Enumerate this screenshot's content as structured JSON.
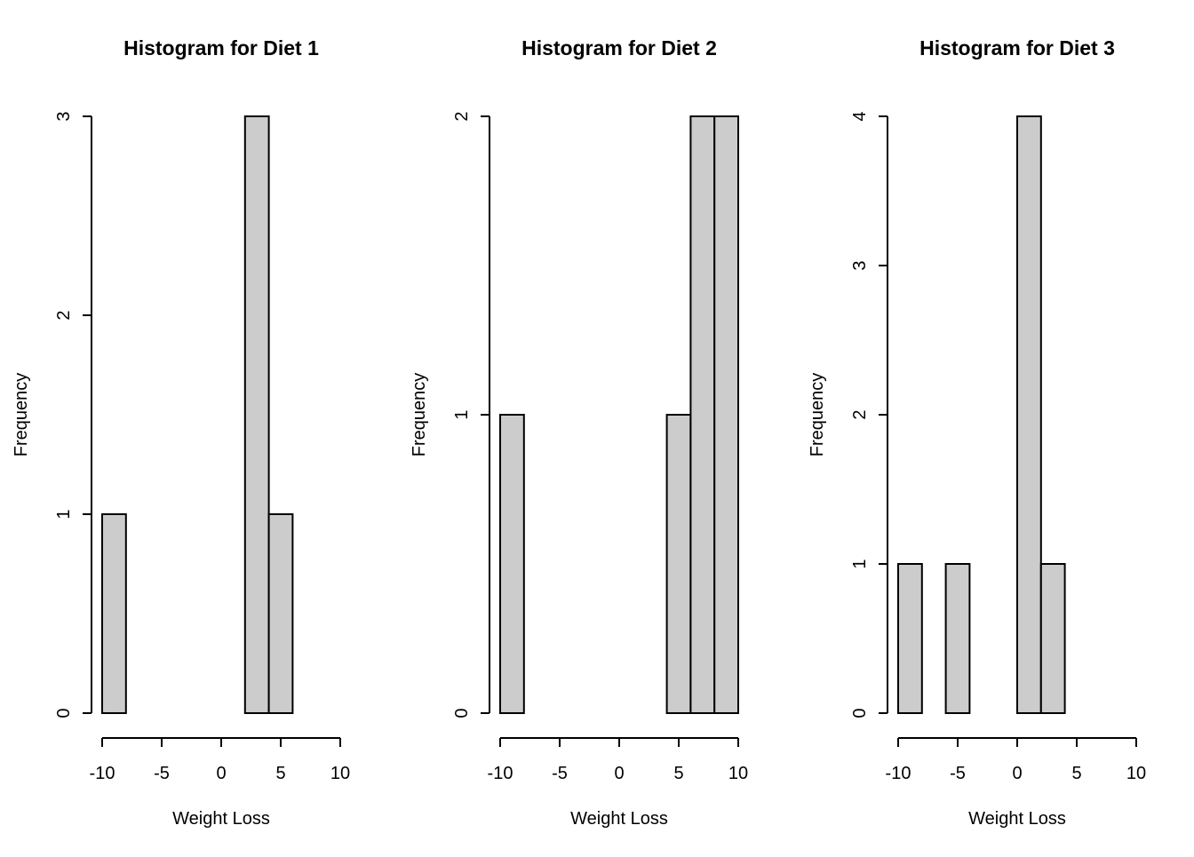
{
  "chart_data": [
    {
      "type": "bar",
      "title": "Histogram for Diet 1",
      "xlabel": "Weight Loss",
      "ylabel": "Frequency",
      "bin_width": 2,
      "bins": [
        {
          "start": -10,
          "end": -8,
          "count": 1
        },
        {
          "start": -8,
          "end": -6,
          "count": 0
        },
        {
          "start": -6,
          "end": -4,
          "count": 0
        },
        {
          "start": -4,
          "end": -2,
          "count": 0
        },
        {
          "start": -2,
          "end": 0,
          "count": 0
        },
        {
          "start": 0,
          "end": 2,
          "count": 0
        },
        {
          "start": 2,
          "end": 4,
          "count": 3
        },
        {
          "start": 4,
          "end": 6,
          "count": 1
        },
        {
          "start": 6,
          "end": 8,
          "count": 0
        },
        {
          "start": 8,
          "end": 10,
          "count": 0
        }
      ],
      "xlim": [
        -10,
        10
      ],
      "ylim": [
        0,
        3
      ],
      "xticks": [
        "-10",
        "-5",
        "0",
        "5",
        "10"
      ],
      "yticks": [
        "0",
        "1",
        "2",
        "3"
      ],
      "bar_color": "#cccccc",
      "grid": false
    },
    {
      "type": "bar",
      "title": "Histogram for Diet 2",
      "xlabel": "Weight Loss",
      "ylabel": "Frequency",
      "bin_width": 2,
      "bins": [
        {
          "start": -10,
          "end": -8,
          "count": 1
        },
        {
          "start": -8,
          "end": -6,
          "count": 0
        },
        {
          "start": -6,
          "end": -4,
          "count": 0
        },
        {
          "start": -4,
          "end": -2,
          "count": 0
        },
        {
          "start": -2,
          "end": 0,
          "count": 0
        },
        {
          "start": 0,
          "end": 2,
          "count": 0
        },
        {
          "start": 2,
          "end": 4,
          "count": 0
        },
        {
          "start": 4,
          "end": 6,
          "count": 1
        },
        {
          "start": 6,
          "end": 8,
          "count": 2
        },
        {
          "start": 8,
          "end": 10,
          "count": 2
        }
      ],
      "xlim": [
        -10,
        10
      ],
      "ylim": [
        0,
        2
      ],
      "xticks": [
        "-10",
        "-5",
        "0",
        "5",
        "10"
      ],
      "yticks": [
        "0",
        "1",
        "2"
      ],
      "bar_color": "#cccccc",
      "grid": false
    },
    {
      "type": "bar",
      "title": "Histogram for Diet 3",
      "xlabel": "Weight Loss",
      "ylabel": "Frequency",
      "bin_width": 2,
      "bins": [
        {
          "start": -10,
          "end": -8,
          "count": 1
        },
        {
          "start": -8,
          "end": -6,
          "count": 0
        },
        {
          "start": -6,
          "end": -4,
          "count": 1
        },
        {
          "start": -4,
          "end": -2,
          "count": 0
        },
        {
          "start": -2,
          "end": 0,
          "count": 0
        },
        {
          "start": 0,
          "end": 2,
          "count": 4
        },
        {
          "start": 2,
          "end": 4,
          "count": 1
        },
        {
          "start": 4,
          "end": 6,
          "count": 0
        },
        {
          "start": 6,
          "end": 8,
          "count": 0
        },
        {
          "start": 8,
          "end": 10,
          "count": 0
        }
      ],
      "xlim": [
        -10,
        10
      ],
      "ylim": [
        0,
        4
      ],
      "xticks": [
        "-10",
        "-5",
        "0",
        "5",
        "10"
      ],
      "yticks": [
        "0",
        "1",
        "2",
        "3",
        "4"
      ],
      "bar_color": "#cccccc",
      "grid": false
    }
  ]
}
